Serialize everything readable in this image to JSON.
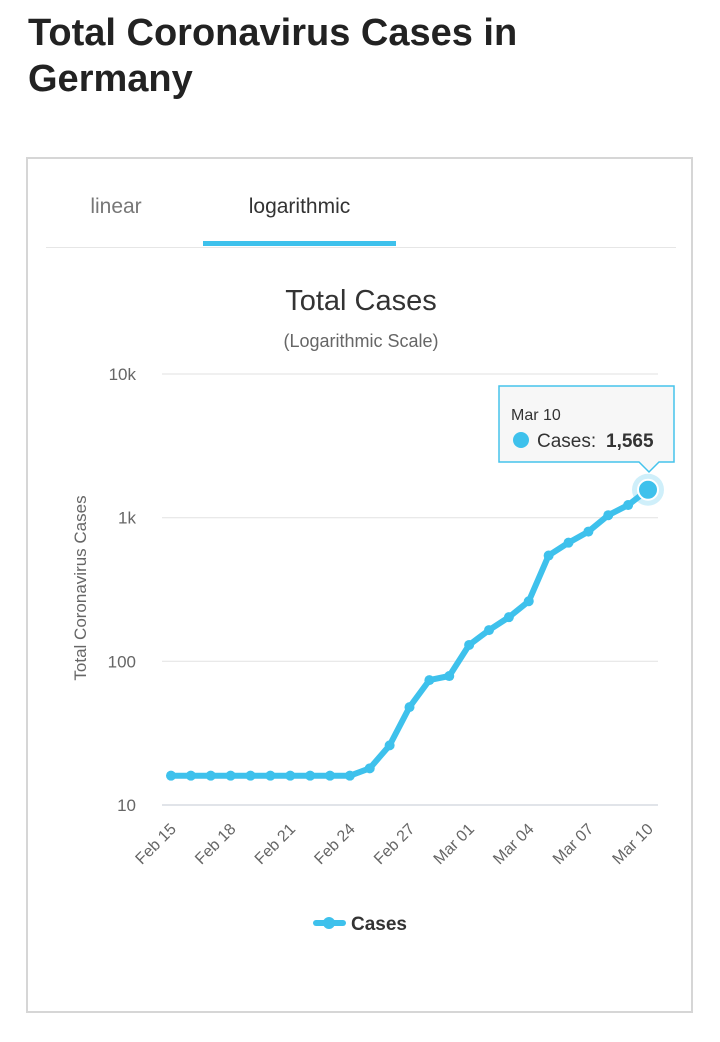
{
  "page": {
    "title": "Total Coronavirus Cases in Germany"
  },
  "tabs": [
    {
      "label": "linear",
      "active": false
    },
    {
      "label": "logarithmic",
      "active": true
    }
  ],
  "colors": {
    "accent": "#3ec1ec",
    "title": "#222222",
    "grid": "#e6e6e6"
  },
  "chart_data": {
    "type": "line",
    "title": "Total Cases",
    "subtitle": "(Logarithmic Scale)",
    "ylabel": "Total Coronavirus Cases",
    "xlabel": "",
    "yscale": "log",
    "ylim": [
      10,
      10000
    ],
    "y_ticks": [
      {
        "value": 10,
        "label": "10"
      },
      {
        "value": 100,
        "label": "100"
      },
      {
        "value": 1000,
        "label": "1k"
      },
      {
        "value": 10000,
        "label": "10k"
      }
    ],
    "x_tick_labels": [
      "Feb 15",
      "Feb 18",
      "Feb 21",
      "Feb 24",
      "Feb 27",
      "Mar 01",
      "Mar 04",
      "Mar 07",
      "Mar 10"
    ],
    "legend": {
      "position": "bottom",
      "entries": [
        "Cases"
      ]
    },
    "grid": true,
    "series": [
      {
        "name": "Cases",
        "x": [
          "Feb 15",
          "Feb 16",
          "Feb 17",
          "Feb 18",
          "Feb 19",
          "Feb 20",
          "Feb 21",
          "Feb 22",
          "Feb 23",
          "Feb 24",
          "Feb 25",
          "Feb 26",
          "Feb 27",
          "Feb 28",
          "Feb 29",
          "Mar 01",
          "Mar 02",
          "Mar 03",
          "Mar 04",
          "Mar 05",
          "Mar 06",
          "Mar 07",
          "Mar 08",
          "Mar 09",
          "Mar 10"
        ],
        "values": [
          16,
          16,
          16,
          16,
          16,
          16,
          16,
          16,
          16,
          16,
          18,
          26,
          48,
          74,
          79,
          130,
          165,
          203,
          262,
          545,
          670,
          800,
          1040,
          1224,
          1565
        ]
      }
    ],
    "tooltip": {
      "date": "Mar 10",
      "series_label": "Cases:",
      "value_text": "1,565"
    }
  }
}
